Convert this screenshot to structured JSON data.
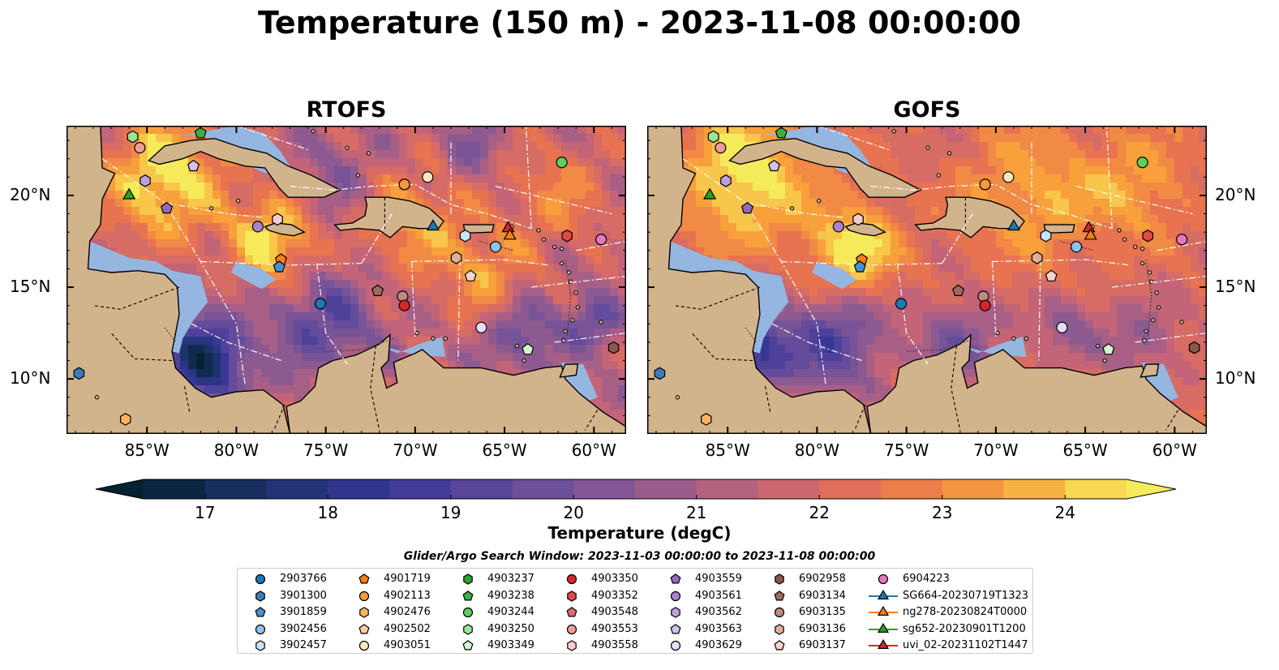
{
  "title": "Temperature (150 m) - 2023-11-08 00:00:00",
  "panels": [
    {
      "id": "rtofs",
      "title": "RTOFS"
    },
    {
      "id": "gofs",
      "title": "GOFS"
    }
  ],
  "x_ticks": [
    {
      "lon": -85,
      "label": "85°W"
    },
    {
      "lon": -80,
      "label": "80°W"
    },
    {
      "lon": -75,
      "label": "75°W"
    },
    {
      "lon": -70,
      "label": "70°W"
    },
    {
      "lon": -65,
      "label": "65°W"
    },
    {
      "lon": -60,
      "label": "60°W"
    }
  ],
  "y_ticks": [
    {
      "lat": 20,
      "label": "20°N"
    },
    {
      "lat": 15,
      "label": "15°N"
    },
    {
      "lat": 10,
      "label": "10°N"
    }
  ],
  "map_extent": {
    "lon": [
      -89.5,
      -58.2
    ],
    "lat": [
      7.0,
      23.8
    ]
  },
  "colorbar": {
    "title": "Temperature (degC)",
    "min": 16.5,
    "max": 24.5,
    "step": 0.5,
    "ticks": [
      "17",
      "18",
      "19",
      "20",
      "21",
      "22",
      "23",
      "24"
    ],
    "tick_values": [
      17,
      18,
      19,
      20,
      21,
      22,
      23,
      24
    ],
    "extend": "both",
    "colormap": "thermal"
  },
  "colors": {
    "land": "#d2b48c",
    "shallow_water": "#95b6e0",
    "coast": "#000000"
  },
  "search_window": "Glider/Argo Search Window: 2023-11-03 00:00:00 to 2023-11-08 00:00:00",
  "legend": [
    {
      "label": "2903766",
      "marker": "circle",
      "color": "#1f77b4"
    },
    {
      "label": "3901300",
      "marker": "hexagon",
      "color": "#3a7bb8"
    },
    {
      "label": "3901859",
      "marker": "pentagon",
      "color": "#4a8fd1"
    },
    {
      "label": "3902456",
      "marker": "circle",
      "color": "#8fc3ee"
    },
    {
      "label": "3902457",
      "marker": "hexagon",
      "color": "#c6e3fa"
    },
    {
      "label": "4901719",
      "marker": "pentagon",
      "color": "#ff7f0e"
    },
    {
      "label": "4902113",
      "marker": "circle",
      "color": "#ff9a3c"
    },
    {
      "label": "4902476",
      "marker": "hexagon",
      "color": "#ffb45e"
    },
    {
      "label": "4902502",
      "marker": "pentagon",
      "color": "#ffcf99"
    },
    {
      "label": "4903051",
      "marker": "circle",
      "color": "#ffe6c4"
    },
    {
      "label": "4903237",
      "marker": "hexagon",
      "color": "#2ca02c"
    },
    {
      "label": "4903238",
      "marker": "pentagon",
      "color": "#3cb043"
    },
    {
      "label": "4903244",
      "marker": "circle",
      "color": "#5fcf5f"
    },
    {
      "label": "4903250",
      "marker": "hexagon",
      "color": "#98e698"
    },
    {
      "label": "4903349",
      "marker": "pentagon",
      "color": "#d2f5d2"
    },
    {
      "label": "4903350",
      "marker": "circle",
      "color": "#d62728"
    },
    {
      "label": "4903352",
      "marker": "hexagon",
      "color": "#e04848"
    },
    {
      "label": "4903548",
      "marker": "pentagon",
      "color": "#e86a6a"
    },
    {
      "label": "4903553",
      "marker": "circle",
      "color": "#f09a9a"
    },
    {
      "label": "4903558",
      "marker": "hexagon",
      "color": "#f8cccc"
    },
    {
      "label": "4903559",
      "marker": "pentagon",
      "color": "#9467bd"
    },
    {
      "label": "4903561",
      "marker": "circle",
      "color": "#a882d0"
    },
    {
      "label": "4903562",
      "marker": "hexagon",
      "color": "#bd9fe0"
    },
    {
      "label": "4903563",
      "marker": "pentagon",
      "color": "#d3bff0"
    },
    {
      "label": "4903629",
      "marker": "circle",
      "color": "#e8dcfa"
    },
    {
      "label": "6902958",
      "marker": "hexagon",
      "color": "#8c564b"
    },
    {
      "label": "6903134",
      "marker": "pentagon",
      "color": "#a06b5f"
    },
    {
      "label": "6903135",
      "marker": "circle",
      "color": "#c08a7c"
    },
    {
      "label": "6903136",
      "marker": "hexagon",
      "color": "#e3aca0"
    },
    {
      "label": "6903137",
      "marker": "pentagon",
      "color": "#f7d3cb"
    },
    {
      "label": "6904223",
      "marker": "circle",
      "color": "#e377c2"
    },
    {
      "label": "SG664-20230719T1323",
      "marker": "triangle",
      "color": "#1f77b4",
      "line": true
    },
    {
      "label": "ng278-20230824T0000",
      "marker": "triangle",
      "color": "#ff7f0e",
      "line": true
    },
    {
      "label": "sg652-20230901T1200",
      "marker": "triangle",
      "color": "#2ca02c",
      "line": true
    },
    {
      "label": "uvi_02-20231102T1447",
      "marker": "triangle",
      "color": "#d62728",
      "line": true
    }
  ],
  "platforms": [
    {
      "id": "4903238",
      "lon": -82.0,
      "lat": 23.4
    },
    {
      "id": "4903250",
      "lon": -85.8,
      "lat": 23.2
    },
    {
      "id": "4903553",
      "lon": -85.4,
      "lat": 22.6
    },
    {
      "id": "4903563",
      "lon": -82.4,
      "lat": 21.6
    },
    {
      "id": "4903244",
      "lon": -61.8,
      "lat": 21.8
    },
    {
      "id": "4903562",
      "lon": -85.1,
      "lat": 20.8
    },
    {
      "id": "4903051",
      "lon": -69.3,
      "lat": 21.0
    },
    {
      "id": "4902113",
      "lon": -70.6,
      "lat": 20.6
    },
    {
      "id": "sg652-20230901T1200",
      "lon": -86.0,
      "lat": 20.0
    },
    {
      "id": "4903559",
      "lon": -83.9,
      "lat": 19.3
    },
    {
      "id": "4903558",
      "lon": -77.7,
      "lat": 18.7
    },
    {
      "id": "4903561",
      "lon": -78.8,
      "lat": 18.3
    },
    {
      "id": "SG664-20230719T1323",
      "lon": -69.0,
      "lat": 18.3
    },
    {
      "id": "uvi_02-20231102T1447",
      "lon": -64.8,
      "lat": 18.2
    },
    {
      "id": "ng278-20230824T0000",
      "lon": -64.7,
      "lat": 17.8
    },
    {
      "id": "3902457",
      "lon": -67.2,
      "lat": 17.8
    },
    {
      "id": "4903352",
      "lon": -61.5,
      "lat": 17.8
    },
    {
      "id": "6904223",
      "lon": -59.6,
      "lat": 17.6
    },
    {
      "id": "3902456",
      "lon": -65.5,
      "lat": 17.2
    },
    {
      "id": "6903136",
      "lon": -67.7,
      "lat": 16.6
    },
    {
      "id": "4901719",
      "lon": -77.5,
      "lat": 16.5
    },
    {
      "id": "3901859",
      "lon": -77.6,
      "lat": 16.1
    },
    {
      "id": "6903137",
      "lon": -66.9,
      "lat": 15.6
    },
    {
      "id": "6903134",
      "lon": -72.1,
      "lat": 14.8
    },
    {
      "id": "6903135",
      "lon": -70.7,
      "lat": 14.5
    },
    {
      "id": "4903350",
      "lon": -70.6,
      "lat": 14.0
    },
    {
      "id": "2903766",
      "lon": -75.3,
      "lat": 14.1
    },
    {
      "id": "4903629",
      "lon": -66.3,
      "lat": 12.8
    },
    {
      "id": "4903349",
      "lon": -63.7,
      "lat": 11.6
    },
    {
      "id": "6902958",
      "lon": -58.9,
      "lat": 11.7
    },
    {
      "id": "3901300",
      "lon": -88.8,
      "lat": 10.3
    },
    {
      "id": "4902476",
      "lon": -86.2,
      "lat": 7.8
    }
  ]
}
